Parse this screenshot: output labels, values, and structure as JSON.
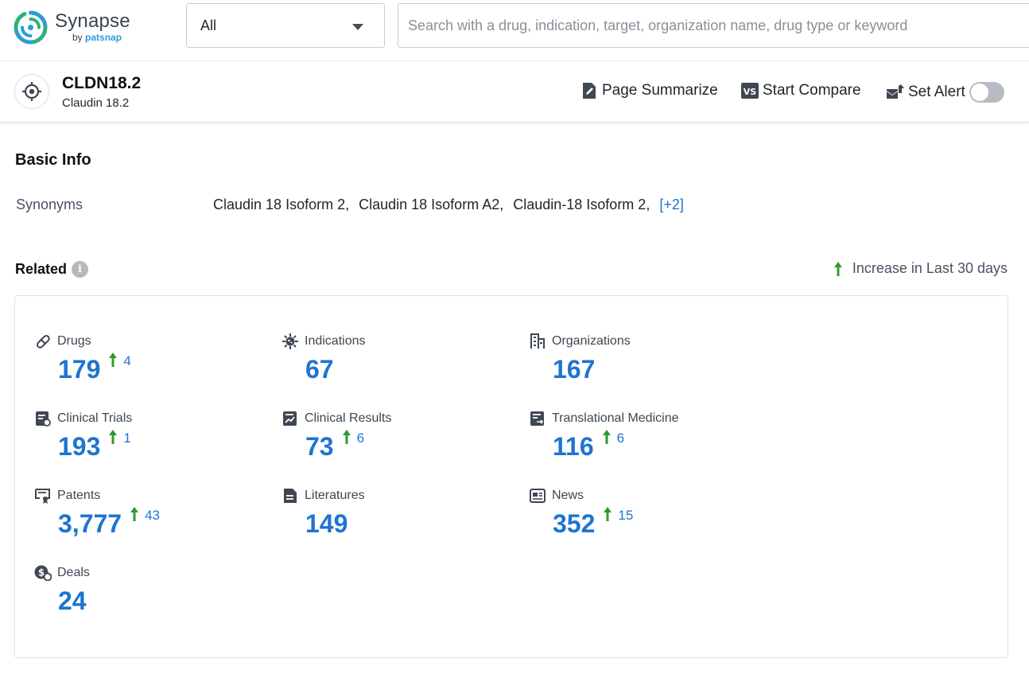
{
  "app": {
    "logo_title": "Synapse",
    "logo_by": "by",
    "logo_brand": "patsnap",
    "brand_color": "#2a9ed3"
  },
  "search": {
    "scope_selected": "All",
    "placeholder": "Search with a drug, indication, target, organization name, drug type or keyword",
    "value": ""
  },
  "target": {
    "name": "CLDN18.2",
    "full_name": "Claudin 18.2",
    "icon": "target-crosshair-icon"
  },
  "actions": {
    "summarize_label": "Page Summarize",
    "compare_label": "Start Compare",
    "alert_label": "Set Alert",
    "alert_enabled": false
  },
  "basic_info": {
    "title": "Basic Info",
    "synonyms_label": "Synonyms",
    "synonyms": [
      "Claudin 18 Isoform 2,",
      "Claudin 18 Isoform A2,",
      "Claudin-18 Isoform 2,"
    ],
    "synonyms_more": "[+2]"
  },
  "related": {
    "title": "Related",
    "info_icon": "info-icon",
    "increase_legend": "Increase in Last 30 days",
    "accent_color": "#1e74d1",
    "increase_color": "#2f9a2f",
    "items": [
      {
        "label": "Drugs",
        "icon": "pill-icon",
        "value": "179",
        "increase": "4"
      },
      {
        "label": "Indications",
        "icon": "virus-icon",
        "value": "67",
        "increase": ""
      },
      {
        "label": "Organizations",
        "icon": "building-icon",
        "value": "167",
        "increase": ""
      },
      {
        "label": "Clinical Trials",
        "icon": "clinical-trials-icon",
        "value": "193",
        "increase": "1"
      },
      {
        "label": "Clinical Results",
        "icon": "chart-report-icon",
        "value": "73",
        "increase": "6"
      },
      {
        "label": "Translational Medicine",
        "icon": "translational-icon",
        "value": "116",
        "increase": "6"
      },
      {
        "label": "Patents",
        "icon": "patent-icon",
        "value": "3,777",
        "increase": "43"
      },
      {
        "label": "Literatures",
        "icon": "document-icon",
        "value": "149",
        "increase": ""
      },
      {
        "label": "News",
        "icon": "newspaper-icon",
        "value": "352",
        "increase": "15"
      },
      {
        "label": "Deals",
        "icon": "deal-icon",
        "value": "24",
        "increase": ""
      }
    ]
  }
}
